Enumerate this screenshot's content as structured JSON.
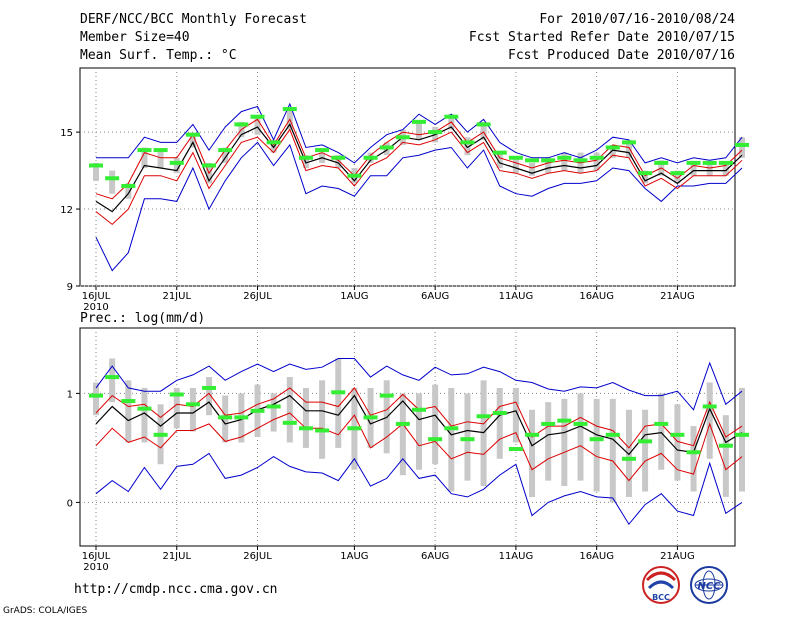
{
  "header": {
    "title": "DERF/NCC/BCC Monthly Forecast",
    "member": "Member Size=40",
    "variable1": "Mean Surf. Temp.: °C",
    "period": "For 2010/07/16-2010/08/24",
    "started": "Fcst Started Refer Date 2010/07/15",
    "produced": "Fcst Produced Date 2010/07/16"
  },
  "footer": {
    "url": "http://cmdp.ncc.cma.gov.cn",
    "credit": "GrADS: COLA/IGES",
    "logo1_text": "BCC",
    "logo2_text": "NCC"
  },
  "colors": {
    "max_min": "#0000cc",
    "std_band": "#dd0000",
    "mean": "#000000",
    "box": "#c8c8c8",
    "member_mark": "#33ee33",
    "grid": "#888888"
  },
  "chart_data": [
    {
      "type": "line",
      "title": "Mean Surf. Temp.: °C",
      "x_tick_labels": [
        "16JUL",
        "21JUL",
        "26JUL",
        "1AUG",
        "6AUG",
        "11AUG",
        "16AUG",
        "21AUG"
      ],
      "x_tick_year": "2010",
      "x_tick_days": [
        0,
        5,
        10,
        16,
        21,
        26,
        31,
        36
      ],
      "ylim": [
        9,
        17.5
      ],
      "yticks": [
        9,
        12,
        15
      ],
      "series": [
        {
          "name": "max",
          "values": [
            14.0,
            14.0,
            14.0,
            14.8,
            14.6,
            14.6,
            15.3,
            14.3,
            15.2,
            15.8,
            16.0,
            14.7,
            16.1,
            14.4,
            14.5,
            14.2,
            13.8,
            14.4,
            14.9,
            15.1,
            15.7,
            15.3,
            15.7,
            15.0,
            15.5,
            14.6,
            14.2,
            14.0,
            14.0,
            14.2,
            14.0,
            14.3,
            14.8,
            14.7,
            13.8,
            14.0,
            13.8,
            14.0,
            13.9,
            14.0,
            14.8
          ]
        },
        {
          "name": "mean_plus_std",
          "values": [
            12.6,
            12.4,
            13.0,
            14.2,
            14.0,
            14.0,
            14.9,
            13.4,
            14.3,
            15.1,
            15.5,
            14.5,
            15.5,
            14.0,
            14.2,
            13.9,
            13.3,
            14.1,
            14.6,
            15.0,
            14.9,
            15.0,
            15.4,
            14.6,
            15.0,
            14.0,
            13.8,
            13.6,
            13.8,
            13.9,
            13.8,
            13.9,
            14.5,
            14.4,
            13.3,
            13.6,
            13.2,
            13.7,
            13.6,
            13.7,
            14.3
          ]
        },
        {
          "name": "mean",
          "values": [
            12.3,
            11.9,
            12.6,
            13.7,
            13.6,
            13.5,
            14.6,
            13.1,
            14.0,
            14.9,
            15.2,
            14.4,
            15.3,
            13.8,
            14.0,
            13.8,
            13.1,
            13.9,
            14.3,
            14.8,
            14.7,
            14.9,
            15.2,
            14.4,
            14.8,
            13.8,
            13.6,
            13.4,
            13.6,
            13.7,
            13.6,
            13.7,
            14.3,
            14.2,
            13.1,
            13.4,
            13.0,
            13.5,
            13.5,
            13.5,
            14.1
          ]
        },
        {
          "name": "mean_minus_std",
          "values": [
            11.9,
            11.4,
            12.0,
            13.3,
            13.3,
            13.1,
            14.2,
            12.8,
            13.7,
            14.6,
            14.8,
            14.2,
            15.1,
            13.5,
            13.7,
            13.6,
            12.9,
            13.7,
            14.0,
            14.6,
            14.5,
            14.7,
            15.0,
            14.2,
            14.6,
            13.5,
            13.4,
            13.2,
            13.4,
            13.5,
            13.4,
            13.5,
            14.1,
            14.0,
            12.9,
            13.2,
            12.8,
            13.3,
            13.3,
            13.3,
            13.9
          ]
        },
        {
          "name": "min",
          "values": [
            10.9,
            9.6,
            10.3,
            12.4,
            12.4,
            12.3,
            13.6,
            12.0,
            13.1,
            14.0,
            14.6,
            13.7,
            14.5,
            12.6,
            12.9,
            12.8,
            12.5,
            13.3,
            13.3,
            14.0,
            14.1,
            14.3,
            14.4,
            13.6,
            14.3,
            12.9,
            12.6,
            12.5,
            12.8,
            13.0,
            13.0,
            13.1,
            13.6,
            13.5,
            12.8,
            12.3,
            12.9,
            12.9,
            13.0,
            13.0,
            13.6
          ]
        },
        {
          "name": "ensemble_member",
          "values": [
            13.7,
            13.2,
            12.9,
            14.3,
            14.3,
            13.8,
            14.9,
            13.7,
            14.3,
            15.3,
            15.6,
            14.6,
            15.9,
            14.0,
            14.3,
            14.0,
            13.3,
            14.0,
            14.4,
            14.8,
            15.4,
            15.0,
            15.6,
            14.6,
            15.3,
            14.2,
            14.0,
            13.9,
            13.9,
            14.0,
            13.9,
            14.0,
            14.4,
            14.6,
            13.4,
            13.8,
            13.4,
            13.8,
            13.8,
            13.8,
            14.5
          ]
        },
        {
          "name": "box_high",
          "values": [
            13.8,
            13.5,
            13.0,
            14.4,
            14.3,
            14.0,
            14.9,
            13.8,
            14.4,
            15.4,
            15.6,
            14.7,
            15.9,
            14.1,
            14.2,
            14.1,
            13.6,
            14.2,
            14.6,
            15.1,
            15.4,
            15.2,
            15.7,
            14.8,
            15.4,
            14.2,
            14.0,
            13.8,
            14.0,
            14.2,
            14.2,
            14.2,
            14.5,
            14.7,
            13.5,
            13.9,
            13.5,
            13.8,
            13.8,
            13.8,
            14.8
          ]
        },
        {
          "name": "box_low",
          "values": [
            13.1,
            12.6,
            12.4,
            13.6,
            13.6,
            13.4,
            14.4,
            13.0,
            13.8,
            14.8,
            14.9,
            14.2,
            15.1,
            13.6,
            13.8,
            13.6,
            13.0,
            13.8,
            14.1,
            14.5,
            14.7,
            14.6,
            15.1,
            14.1,
            14.7,
            13.6,
            13.4,
            13.3,
            13.4,
            13.5,
            13.4,
            13.5,
            14.0,
            14.0,
            13.0,
            13.3,
            13.0,
            13.3,
            13.3,
            13.3,
            14.0
          ]
        }
      ]
    },
    {
      "type": "line",
      "title": "Prec.: log(mm/d)",
      "x_tick_labels": [
        "16JUL",
        "21JUL",
        "26JUL",
        "1AUG",
        "6AUG",
        "11AUG",
        "16AUG",
        "21AUG"
      ],
      "x_tick_year": "2010",
      "x_tick_days": [
        0,
        5,
        10,
        16,
        21,
        26,
        31,
        36
      ],
      "ylim": [
        -0.4,
        1.6
      ],
      "yticks": [
        0,
        1
      ],
      "series": [
        {
          "name": "max",
          "values": [
            1.05,
            1.25,
            1.05,
            1.02,
            1.02,
            1.12,
            1.17,
            1.25,
            1.12,
            1.2,
            1.27,
            1.2,
            1.27,
            1.22,
            1.24,
            1.32,
            1.32,
            1.15,
            1.25,
            1.17,
            1.12,
            1.24,
            1.17,
            1.18,
            1.24,
            1.2,
            1.12,
            1.1,
            1.04,
            1.02,
            1.06,
            1.05,
            1.1,
            1.03,
            0.98,
            0.98,
            1.02,
            0.85,
            1.28,
            0.9,
            1.02
          ]
        },
        {
          "name": "mean_plus_std",
          "values": [
            0.82,
            0.98,
            0.88,
            0.9,
            0.78,
            0.9,
            0.88,
            1.0,
            0.8,
            0.82,
            0.9,
            0.95,
            1.05,
            0.92,
            0.92,
            0.88,
            1.05,
            0.8,
            0.85,
            0.99,
            0.85,
            0.88,
            0.7,
            0.74,
            0.72,
            0.88,
            0.92,
            0.6,
            0.7,
            0.7,
            0.78,
            0.7,
            0.66,
            0.5,
            0.7,
            0.72,
            0.56,
            0.52,
            0.92,
            0.6,
            0.7
          ]
        },
        {
          "name": "mean",
          "values": [
            0.72,
            0.88,
            0.75,
            0.82,
            0.7,
            0.82,
            0.82,
            0.92,
            0.72,
            0.76,
            0.85,
            0.9,
            0.98,
            0.84,
            0.84,
            0.8,
            0.98,
            0.72,
            0.78,
            0.93,
            0.76,
            0.8,
            0.62,
            0.66,
            0.64,
            0.8,
            0.84,
            0.52,
            0.62,
            0.64,
            0.7,
            0.62,
            0.58,
            0.44,
            0.62,
            0.64,
            0.48,
            0.46,
            0.86,
            0.55,
            0.64
          ]
        },
        {
          "name": "mean_minus_std",
          "values": [
            0.52,
            0.68,
            0.55,
            0.6,
            0.5,
            0.66,
            0.66,
            0.72,
            0.56,
            0.6,
            0.68,
            0.76,
            0.82,
            0.68,
            0.68,
            0.62,
            0.8,
            0.5,
            0.6,
            0.72,
            0.52,
            0.56,
            0.4,
            0.46,
            0.44,
            0.58,
            0.64,
            0.3,
            0.4,
            0.46,
            0.52,
            0.42,
            0.38,
            0.2,
            0.38,
            0.45,
            0.3,
            0.26,
            0.72,
            0.3,
            0.42
          ]
        },
        {
          "name": "min",
          "values": [
            0.08,
            0.2,
            0.1,
            0.32,
            0.12,
            0.33,
            0.35,
            0.45,
            0.22,
            0.25,
            0.32,
            0.42,
            0.33,
            0.28,
            0.27,
            0.2,
            0.4,
            0.15,
            0.22,
            0.4,
            0.22,
            0.25,
            0.08,
            0.05,
            0.12,
            0.25,
            0.35,
            -0.12,
            0.0,
            0.06,
            0.1,
            0.05,
            0.04,
            -0.2,
            -0.02,
            0.08,
            -0.08,
            -0.12,
            0.36,
            -0.1,
            0.0
          ]
        },
        {
          "name": "ensemble_member",
          "values": [
            0.98,
            1.15,
            0.93,
            0.86,
            0.62,
            0.99,
            0.9,
            1.05,
            0.78,
            0.78,
            0.84,
            0.88,
            0.73,
            0.68,
            0.66,
            1.01,
            0.68,
            0.78,
            0.98,
            0.72,
            0.85,
            0.58,
            0.68,
            0.58,
            0.79,
            0.82,
            0.49,
            0.62,
            0.72,
            0.75,
            0.72,
            0.58,
            0.62,
            0.4,
            0.56,
            0.72,
            0.62,
            0.46,
            0.88,
            0.52,
            0.62
          ]
        },
        {
          "name": "box_high",
          "values": [
            1.1,
            1.32,
            1.12,
            1.05,
            0.9,
            1.05,
            1.05,
            1.15,
            0.98,
            1.0,
            1.08,
            1.0,
            1.15,
            1.05,
            1.12,
            1.32,
            1.05,
            1.05,
            1.12,
            1.0,
            1.0,
            1.08,
            1.05,
            1.0,
            1.12,
            1.05,
            1.05,
            0.85,
            0.92,
            0.95,
            1.0,
            0.95,
            0.95,
            0.85,
            0.85,
            1.0,
            0.9,
            0.7,
            1.1,
            0.8,
            1.05
          ]
        },
        {
          "name": "box_low",
          "values": [
            0.8,
            0.92,
            0.55,
            0.55,
            0.35,
            0.68,
            0.65,
            0.8,
            0.55,
            0.55,
            0.6,
            0.65,
            0.55,
            0.5,
            0.4,
            0.5,
            0.3,
            0.5,
            0.45,
            0.25,
            0.3,
            0.35,
            0.1,
            0.2,
            0.15,
            0.4,
            0.55,
            0.05,
            0.2,
            0.15,
            0.2,
            0.1,
            0.0,
            0.05,
            0.1,
            0.3,
            0.2,
            0.1,
            0.4,
            0.05,
            0.1
          ]
        }
      ]
    }
  ]
}
